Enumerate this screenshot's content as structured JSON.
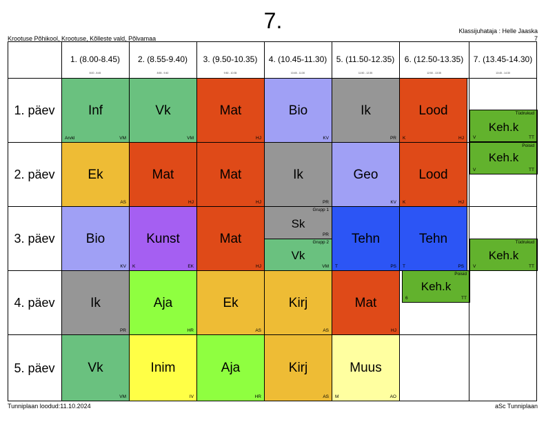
{
  "title": "7.",
  "school": "Krootuse Põhikool, Krootuse, Kõlleste vald, Põlvamaa",
  "class_teacher": "Klassijuhataja : Helle Jaaska",
  "class_number": "7",
  "footer_left": "Tunniplaan loodud:11.10.2024",
  "footer_right": "aSc Tunniplaan",
  "periods": [
    {
      "label": "1. (8.00-8.45)",
      "time": "8:00 - 8:45"
    },
    {
      "label": "2. (8.55-9.40)",
      "time": "8:55 - 9:40"
    },
    {
      "label": "3. (9.50-10.35)",
      "time": "9:50 - 10:35"
    },
    {
      "label": "4. (10.45-11.30)",
      "time": "10:45 - 11:30"
    },
    {
      "label": "5. (11.50-12.35)",
      "time": "11:50 - 12:35"
    },
    {
      "label": "6. (12.50-13.35)",
      "time": "12:50 - 13:35"
    },
    {
      "label": "7. (13.45-14.30)",
      "time": "13:45 - 14:30"
    }
  ],
  "days": [
    "1. päev",
    "2. päev",
    "3. päev",
    "4. päev",
    "5. päev"
  ],
  "colors": {
    "green": "#6ac17f",
    "red": "#df4a18",
    "lavender": "#a0a0f5",
    "grey": "#969696",
    "lime": "#62b22d",
    "orange": "#eebc35",
    "purple": "#a55ff2",
    "blue": "#2c55f5",
    "brightgreen": "#8fff40",
    "yellow": "#ffff46",
    "paleyellow": "#ffffa0"
  },
  "cells": {
    "d1p1": {
      "subject": "Inf",
      "room": "Arvkl",
      "teacher": "VM"
    },
    "d1p2": {
      "subject": "Vk",
      "room": "",
      "teacher": "VM"
    },
    "d1p3": {
      "subject": "Mat",
      "room": "",
      "teacher": "HJ"
    },
    "d1p4": {
      "subject": "Bio",
      "room": "",
      "teacher": "KV"
    },
    "d1p5": {
      "subject": "Ik",
      "room": "",
      "teacher": "PR"
    },
    "d1p6": {
      "subject": "Lood",
      "room": "K",
      "teacher": "HJ"
    },
    "d1p7": {
      "subject": "Keh.k",
      "room": "V",
      "teacher": "TT",
      "group": "Tüdrukud"
    },
    "d2p1": {
      "subject": "Ek",
      "room": "",
      "teacher": "AS"
    },
    "d2p2": {
      "subject": "Mat",
      "room": "",
      "teacher": "HJ"
    },
    "d2p3": {
      "subject": "Mat",
      "room": "",
      "teacher": "HJ"
    },
    "d2p4": {
      "subject": "Ik",
      "room": "",
      "teacher": "PR"
    },
    "d2p5": {
      "subject": "Geo",
      "room": "",
      "teacher": "KV"
    },
    "d2p6": {
      "subject": "Lood",
      "room": "K",
      "teacher": "HJ"
    },
    "d2p7": {
      "subject": "Keh.k",
      "room": "V",
      "teacher": "TT",
      "group": "Poisid"
    },
    "d3p1": {
      "subject": "Bio",
      "room": "",
      "teacher": "KV"
    },
    "d3p2": {
      "subject": "Kunst",
      "room": "K",
      "teacher": "EK"
    },
    "d3p3": {
      "subject": "Mat",
      "room": "",
      "teacher": "HJ"
    },
    "d3p4a": {
      "subject": "Sk",
      "room": "",
      "teacher": "PR",
      "group": "Grupp 1"
    },
    "d3p4b": {
      "subject": "Vk",
      "room": "",
      "teacher": "VM",
      "group": "Grupp 2"
    },
    "d3p5": {
      "subject": "Tehn",
      "room": "T",
      "teacher": "PS"
    },
    "d3p6": {
      "subject": "Tehn",
      "room": "T",
      "teacher": "PS"
    },
    "d3p7": {
      "subject": "Keh.k",
      "room": "V",
      "teacher": "TT",
      "group": "Tüdrukud"
    },
    "d4p1": {
      "subject": "Ik",
      "room": "",
      "teacher": "PR"
    },
    "d4p2": {
      "subject": "Aja",
      "room": "",
      "teacher": "HR"
    },
    "d4p3": {
      "subject": "Ek",
      "room": "",
      "teacher": "AS"
    },
    "d4p4": {
      "subject": "Kirj",
      "room": "",
      "teacher": "AS"
    },
    "d4p5": {
      "subject": "Mat",
      "room": "",
      "teacher": "HJ"
    },
    "d4p6": {
      "subject": "Keh.k",
      "room": "6",
      "teacher": "TT",
      "group": "Poisid"
    },
    "d5p1": {
      "subject": "Vk",
      "room": "",
      "teacher": "VM"
    },
    "d5p2": {
      "subject": "Inim",
      "room": "",
      "teacher": "IV"
    },
    "d5p3": {
      "subject": "Aja",
      "room": "",
      "teacher": "HR"
    },
    "d5p4": {
      "subject": "Kirj",
      "room": "",
      "teacher": "AS"
    },
    "d5p5": {
      "subject": "Muus",
      "room": "M",
      "teacher": "AO"
    }
  }
}
